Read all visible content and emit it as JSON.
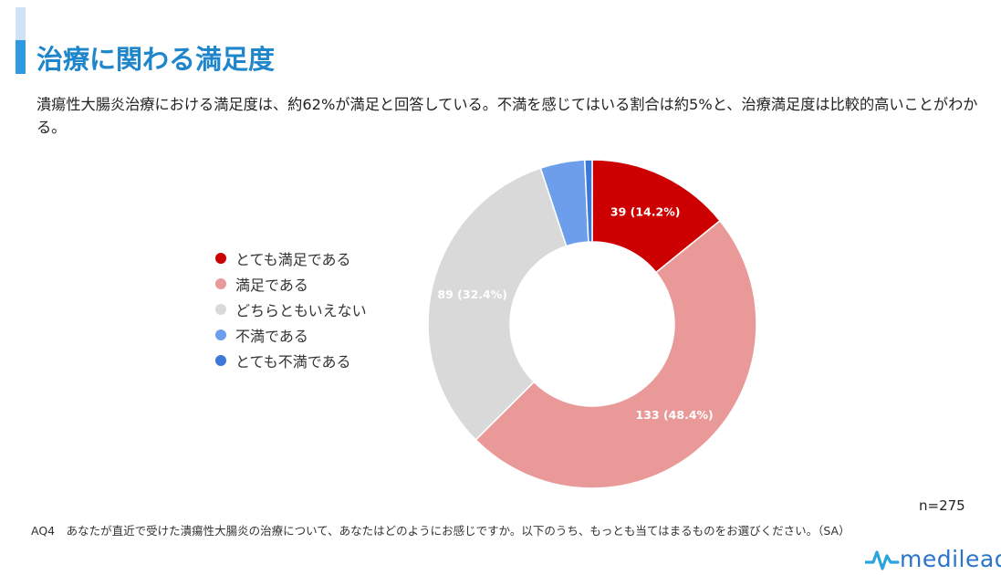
{
  "header": {
    "title": "治療に関わる満足度",
    "description": "潰瘍性大腸炎治療における満足度は、約62%が満足と回答している。不満を感じてはいる割合は約5%と、治療満足度は比較的高いことがわかる。"
  },
  "chart_data": {
    "type": "pie",
    "categories": [
      "とても満足である",
      "満足である",
      "どちらともいえない",
      "不満である",
      "とても不満である"
    ],
    "values": [
      39,
      133,
      89,
      12,
      2
    ],
    "labels": [
      "39 (14.2%)",
      "133 (48.4%)",
      "89 (32.4%)",
      "",
      ""
    ],
    "colors": [
      "#cc0000",
      "#ea9999",
      "#d9d9d9",
      "#6d9eeb",
      "#3c78d8"
    ],
    "donut": true,
    "legend": "left"
  },
  "footer": {
    "n": "n=275",
    "question": "AQ4　あなたが直近で受けた潰瘍性大腸炎の治療について、あなたはどのようにお感じですか。以下のうち、もっとも当てはまるものをお選びください。（SA）",
    "logo_text": "medilead"
  }
}
